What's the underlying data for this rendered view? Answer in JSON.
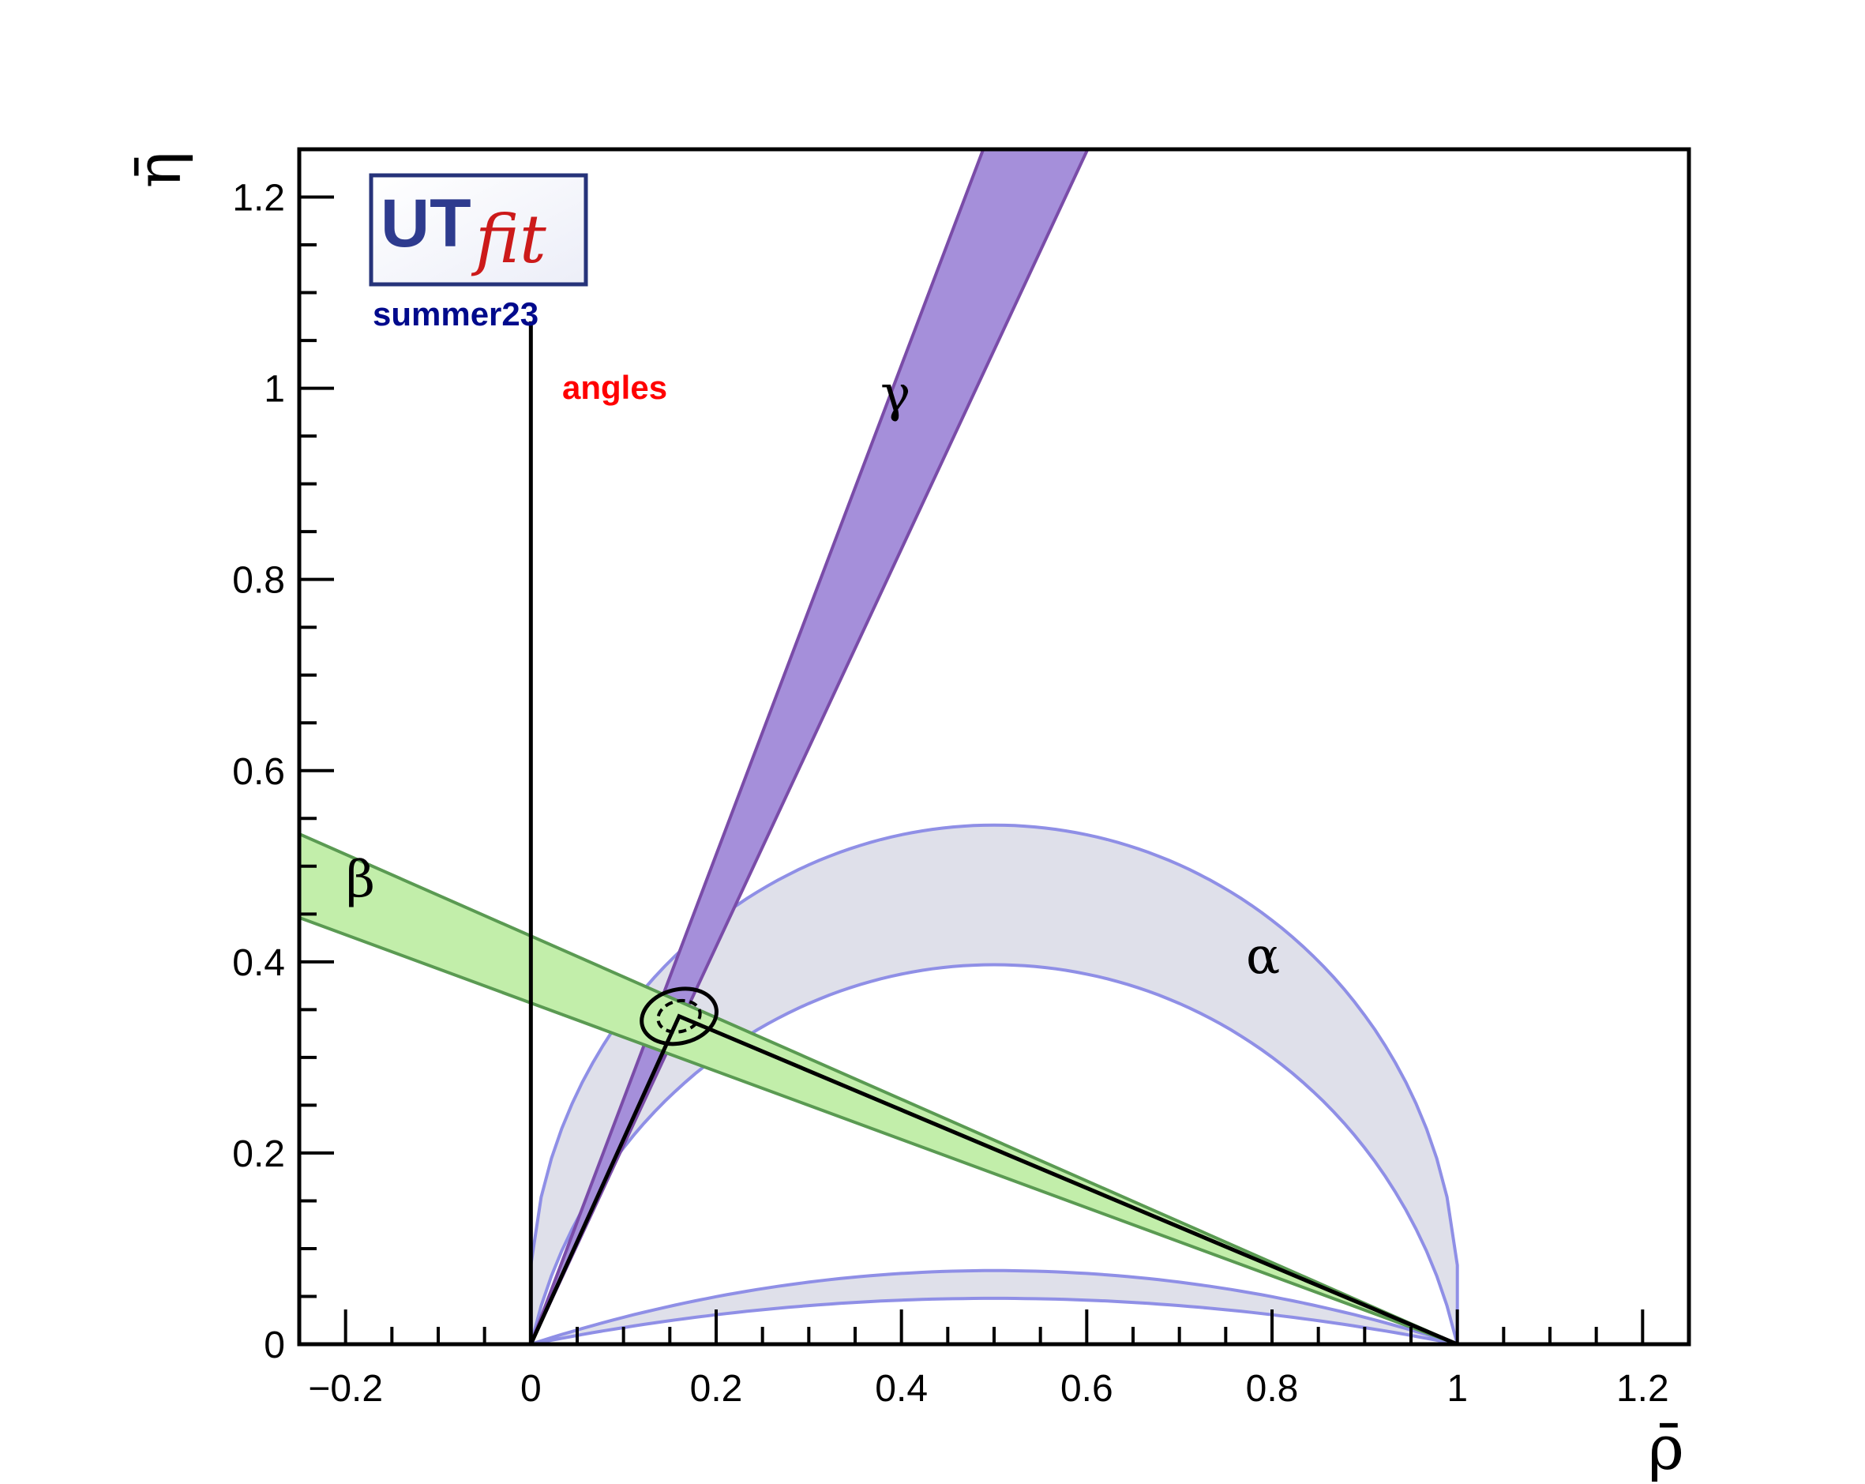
{
  "chart_data": {
    "type": "area",
    "xlabel": "ρ̄",
    "ylabel": "η̄",
    "xlim": [
      -0.25,
      1.25
    ],
    "ylim": [
      0,
      1.25
    ],
    "x_ticks": [
      -0.2,
      0,
      0.2,
      0.4,
      0.6,
      0.8,
      1,
      1.2
    ],
    "x_tick_labels": [
      "−0.2",
      "0",
      "0.2",
      "0.4",
      "0.6",
      "0.8",
      "1",
      "1.2"
    ],
    "y_ticks": [
      0,
      0.2,
      0.4,
      0.6,
      0.8,
      1,
      1.2
    ],
    "y_tick_labels": [
      "0",
      "0.2",
      "0.4",
      "0.6",
      "0.8",
      "1",
      "1.2"
    ],
    "annotations": {
      "logo_ut": "UT",
      "logo_fit": "fit",
      "edition": "summer23",
      "constraint_set": "angles",
      "gamma": "γ",
      "beta": "β",
      "alpha": "α"
    },
    "colors": {
      "gamma_fill": "#a58fda",
      "gamma_edge": "#7a4ca8",
      "beta_fill": "#c2eeaa",
      "beta_edge": "#5a9a52",
      "alpha_fill": "#dfe0ea",
      "alpha_edge": "#8f8fe6",
      "red_text": "#ff0000",
      "blue_text": "#000a8c"
    },
    "bands": {
      "gamma": {
        "apex": [
          0,
          0
        ],
        "slope_low": 2.08,
        "slope_high": 2.56
      },
      "beta": {
        "apex": [
          1,
          0
        ],
        "slope_low": -0.357,
        "slope_high": -0.427
      },
      "alpha_outer": {
        "center": [
          0.5,
          0
        ],
        "r_outer": 0.543,
        "r_inner": 0.397
      },
      "alpha_lower": {
        "center": [
          0.5,
          0
        ],
        "top_outer": 0.077,
        "top_inner": 0.048
      }
    },
    "triangle_apex": {
      "rho": 0.16,
      "eta": 0.343
    },
    "contours": [
      {
        "level": "68%",
        "rx": 0.023,
        "ry": 0.016
      },
      {
        "level": "95%",
        "rx": 0.041,
        "ry": 0.028
      }
    ],
    "vertical_line_x": 0,
    "vertical_line_top": 1.07
  }
}
